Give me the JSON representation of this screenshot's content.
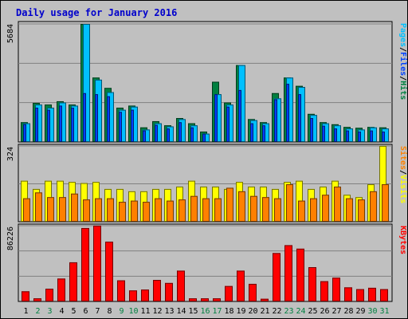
{
  "chart_data": {
    "type": "bar",
    "title": "Daily usage for January 2016",
    "colors": {
      "background": "#c0c0c0",
      "title": "#0000cc",
      "hits": "#008040",
      "files": "#0040ff",
      "pages": "#00c0ff",
      "visits": "#ffff00",
      "sites": "#ff8000",
      "kbytes": "#ff0000",
      "weekend_day": "#008040",
      "weekday": "#000000"
    },
    "days": [
      "1",
      "2",
      "3",
      "4",
      "5",
      "6",
      "7",
      "8",
      "9",
      "10",
      "11",
      "12",
      "13",
      "14",
      "15",
      "16",
      "17",
      "18",
      "19",
      "20",
      "21",
      "22",
      "23",
      "24",
      "25",
      "26",
      "27",
      "28",
      "29",
      "30",
      "31"
    ],
    "weekend_days": [
      "2",
      "3",
      "9",
      "10",
      "16",
      "17",
      "23",
      "24",
      "30",
      "31"
    ],
    "panels": [
      {
        "id": "hits-files-pages",
        "max_label": "5684",
        "max": 5684,
        "legend": [
          {
            "text": "Hits",
            "color": "#008040"
          },
          {
            "text": "Files",
            "color": "#0040ff"
          },
          {
            "text": "Pages",
            "color": "#00c0ff"
          }
        ],
        "series": [
          {
            "name": "Hits",
            "values": [
              950,
              1880,
              1800,
              1960,
              1800,
              5684,
              3100,
              2600,
              1650,
              1750,
              700,
              1000,
              800,
              1150,
              900,
              500,
              2900,
              1900,
              3700,
              1100,
              950,
              2350,
              3100,
              2700,
              1350,
              950,
              850,
              720,
              680,
              720,
              700
            ]
          },
          {
            "name": "Files",
            "values": [
              850,
              1650,
              1550,
              1750,
              1650,
              2350,
              2300,
              2200,
              1450,
              1550,
              550,
              820,
              650,
              950,
              700,
              400,
              2300,
              1700,
              2500,
              900,
              800,
              2050,
              2800,
              2300,
              1150,
              780,
              650,
              550,
              500,
              550,
              500
            ]
          },
          {
            "name": "Pages",
            "values": [
              900,
              1800,
              1650,
              1900,
              1750,
              5684,
              3000,
              2400,
              1550,
              1700,
              600,
              900,
              750,
              1100,
              800,
              400,
              2300,
              1800,
              3700,
              1050,
              900,
              2100,
              3100,
              2650,
              1300,
              900,
              800,
              650,
              600,
              700,
              650
            ]
          }
        ]
      },
      {
        "id": "visits-sites",
        "max_label": "324",
        "max": 324,
        "legend": [
          {
            "text": "Visits",
            "color": "#ffff00"
          },
          {
            "text": "Sites",
            "color": "#ff8000"
          }
        ],
        "series": [
          {
            "name": "Visits",
            "values": [
              175,
              140,
              175,
              175,
              170,
              165,
              170,
              140,
              140,
              130,
              130,
              140,
              140,
              150,
              175,
              150,
              150,
              140,
              170,
              150,
              150,
              140,
              170,
              175,
              140,
              150,
              175,
              115,
              105,
              160,
              324
            ]
          },
          {
            "name": "Sites",
            "values": [
              100,
              125,
              105,
              105,
              120,
              95,
              100,
              100,
              85,
              90,
              85,
              100,
              90,
              95,
              110,
              100,
              100,
              145,
              130,
              110,
              105,
              100,
              160,
              90,
              100,
              115,
              150,
              100,
              95,
              130,
              160
            ]
          }
        ]
      },
      {
        "id": "kbytes",
        "max_label": "86226",
        "max": 86226,
        "legend": [
          {
            "text": "KBytes",
            "color": "#ff0000"
          }
        ],
        "series": [
          {
            "name": "KBytes",
            "values": [
              11500,
              3500,
              14500,
              26000,
              44500,
              83500,
              86226,
              68000,
              24000,
              12500,
              13500,
              24500,
              21000,
              35000,
              3500,
              3500,
              3500,
              17500,
              35000,
              20000,
              3000,
              55000,
              64000,
              60000,
              39000,
              23000,
              27000,
              16000,
              14000,
              15500,
              14000
            ]
          }
        ]
      }
    ]
  }
}
